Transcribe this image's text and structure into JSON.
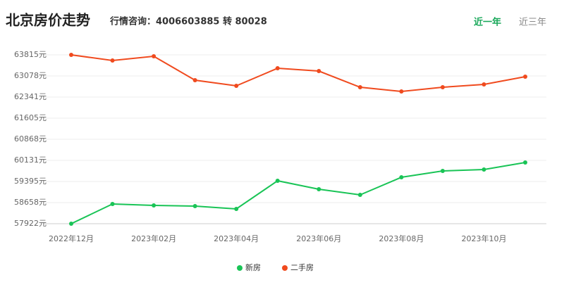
{
  "chart_data": {
    "type": "line",
    "title": "北京房价走势",
    "subtitle": "行情咨询：4006603885 转 80028",
    "categories": [
      "2022年12月",
      null,
      "2023年02月",
      null,
      "2023年04月",
      null,
      "2023年06月",
      null,
      "2023年08月",
      null,
      "2023年10月",
      null
    ],
    "series": [
      {
        "name": "新房",
        "color": "#19c456",
        "values": [
          57922,
          58609,
          58560,
          58536,
          58438,
          59420,
          59125,
          58929,
          59542,
          59763,
          59812,
          60058
        ]
      },
      {
        "name": "二手房",
        "color": "#f04a1e",
        "values": [
          63815,
          63619,
          63766,
          62930,
          62734,
          63348,
          63250,
          62685,
          62537,
          62685,
          62783,
          63053
        ]
      }
    ],
    "ylim": [
      57922,
      63815
    ],
    "yticks": [
      {
        "value": 57922,
        "label": "57922元"
      },
      {
        "value": 58658,
        "label": "58658元"
      },
      {
        "value": 59395,
        "label": "59395元"
      },
      {
        "value": 60131,
        "label": "60131元"
      },
      {
        "value": 60868,
        "label": "60868元"
      },
      {
        "value": 61605,
        "label": "61605元"
      },
      {
        "value": 62341,
        "label": "62341元"
      },
      {
        "value": 63078,
        "label": "63078元"
      },
      {
        "value": 63815,
        "label": "63815元"
      }
    ],
    "grid": true
  },
  "tabs": {
    "items": [
      "近一年",
      "近三年"
    ],
    "active": 0,
    "active_color": "#19a85a"
  }
}
